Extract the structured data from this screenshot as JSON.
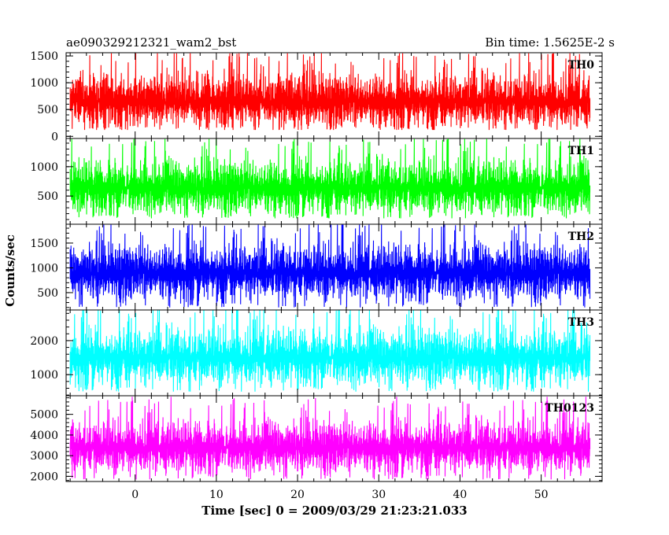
{
  "chart_data": {
    "type": "line",
    "title": "ae090329212321_wam2_bst",
    "subtitle": "Bin time: 1.5625E-2 s",
    "xlabel": "Time [sec] 0 = 2009/03/29 21:23:21.033",
    "ylabel": "Counts/sec",
    "xlim": [
      -8.5,
      57.5
    ],
    "x_range": [
      -8,
      56
    ],
    "x_ticks": [
      0,
      10,
      20,
      30,
      40,
      50
    ],
    "x_tick_labels": [
      "0",
      "10",
      "20",
      "30",
      "40",
      "50"
    ],
    "grid": false,
    "panels": [
      {
        "name": "TH0",
        "color": "#ff0000",
        "ylim": [
          -40,
          1560
        ],
        "mean": 650,
        "spread": 260,
        "floor": 120,
        "peak": 1550,
        "yticks": [
          0,
          500,
          1000,
          1500
        ],
        "ytick_labels": [
          "0",
          "500",
          "1000",
          "1500"
        ]
      },
      {
        "name": "TH1",
        "color": "#00ff00",
        "ylim": [
          20,
          1480
        ],
        "mean": 640,
        "spread": 240,
        "floor": 120,
        "peak": 1470,
        "yticks": [
          500,
          1000
        ],
        "ytick_labels": [
          "500",
          "1000"
        ]
      },
      {
        "name": "TH2",
        "color": "#0000ff",
        "ylim": [
          150,
          1880
        ],
        "mean": 900,
        "spread": 290,
        "floor": 200,
        "peak": 1870,
        "yticks": [
          500,
          1000,
          1500
        ],
        "ytick_labels": [
          "500",
          "1000",
          "1500"
        ]
      },
      {
        "name": "TH3",
        "color": "#00ffff",
        "ylim": [
          380,
          2900
        ],
        "mean": 1500,
        "spread": 430,
        "floor": 500,
        "peak": 2890,
        "yticks": [
          1000,
          2000
        ],
        "ytick_labels": [
          "1000",
          "2000"
        ]
      },
      {
        "name": "TH0123",
        "color": "#ff00ff",
        "ylim": [
          1750,
          5900
        ],
        "mean": 3400,
        "spread": 650,
        "floor": 1850,
        "peak": 5850,
        "yticks": [
          2000,
          3000,
          4000,
          5000
        ],
        "ytick_labels": [
          "2000",
          "3000",
          "4000",
          "5000"
        ]
      }
    ]
  }
}
